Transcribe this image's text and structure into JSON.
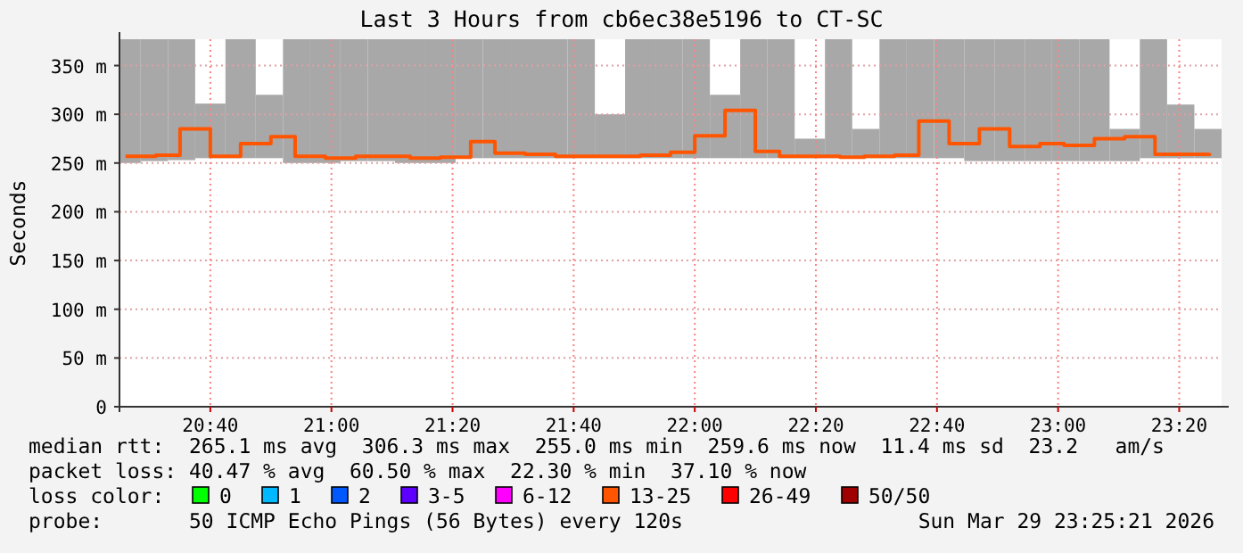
{
  "chart_data": {
    "type": "bar",
    "title": "Last 3 Hours from cb6ec38e5196 to CT-SC",
    "ylabel": "Seconds",
    "x": [
      "2026-03-29T20:26",
      "2026-03-29T20:31",
      "2026-03-29T20:35",
      "2026-03-29T20:40",
      "2026-03-29T20:45",
      "2026-03-29T20:50",
      "2026-03-29T20:54",
      "2026-03-29T20:59",
      "2026-03-29T21:04",
      "2026-03-29T21:08",
      "2026-03-29T21:13",
      "2026-03-29T21:18",
      "2026-03-29T21:23",
      "2026-03-29T21:27",
      "2026-03-29T21:32",
      "2026-03-29T21:37",
      "2026-03-29T21:41",
      "2026-03-29T21:46",
      "2026-03-29T21:51",
      "2026-03-29T21:56",
      "2026-03-29T22:00",
      "2026-03-29T22:05",
      "2026-03-29T22:10",
      "2026-03-29T22:14",
      "2026-03-29T22:19",
      "2026-03-29T22:24",
      "2026-03-29T22:28",
      "2026-03-29T22:33",
      "2026-03-29T22:37",
      "2026-03-29T22:42",
      "2026-03-29T22:47",
      "2026-03-29T22:52",
      "2026-03-29T22:57",
      "2026-03-29T23:01",
      "2026-03-29T23:06",
      "2026-03-29T23:11",
      "2026-03-29T23:16",
      "2026-03-29T23:20",
      "2026-03-29T23:25"
    ],
    "xlim": [
      "2026-03-29T20:25",
      "2026-03-29T23:27"
    ],
    "xticks": [
      {
        "value": "2026-03-29T20:40",
        "label": "20:40"
      },
      {
        "value": "2026-03-29T21:00",
        "label": "21:00"
      },
      {
        "value": "2026-03-29T21:20",
        "label": "21:20"
      },
      {
        "value": "2026-03-29T21:40",
        "label": "21:40"
      },
      {
        "value": "2026-03-29T22:00",
        "label": "22:00"
      },
      {
        "value": "2026-03-29T22:20",
        "label": "22:20"
      },
      {
        "value": "2026-03-29T22:40",
        "label": "22:40"
      },
      {
        "value": "2026-03-29T23:00",
        "label": "23:00"
      },
      {
        "value": "2026-03-29T23:20",
        "label": "23:20"
      }
    ],
    "ylim": [
      0,
      377
    ],
    "yticks": [
      0,
      {
        "value": 50,
        "label": "50 m"
      },
      {
        "value": 100,
        "label": "100 m"
      },
      {
        "value": 150,
        "label": "150 m"
      },
      {
        "value": 200,
        "label": "200 m"
      },
      {
        "value": 250,
        "label": "250 m"
      },
      {
        "value": 300,
        "label": "300 m"
      },
      {
        "value": 350,
        "label": "350 m"
      }
    ],
    "grid": true,
    "legend": "bottom",
    "legend_title": "loss color:",
    "series": [
      {
        "color": "#a8a8a8",
        "base": [
          250,
          252,
          253,
          255,
          255,
          255,
          250,
          250,
          252,
          252,
          250,
          250,
          255,
          255,
          255,
          255,
          255,
          255,
          255,
          255,
          255,
          255,
          255,
          255,
          255,
          255,
          255,
          255,
          255,
          255,
          252,
          252,
          252,
          252,
          252,
          252,
          255,
          255,
          255
        ],
        "values": [
          127,
          125,
          124,
          56,
          122,
          65,
          127,
          127,
          125,
          125,
          127,
          127,
          122,
          122,
          122,
          122,
          122,
          45,
          122,
          122,
          122,
          65,
          122,
          122,
          20,
          122,
          30,
          122,
          122,
          122,
          125,
          125,
          125,
          125,
          125,
          33,
          122,
          55,
          30
        ]
      },
      {
        "name": "0",
        "type": "step",
        "color": "#00ff00",
        "values": [
          null,
          null,
          null,
          null,
          null,
          null,
          null,
          null,
          null,
          null,
          null,
          null,
          null,
          null,
          null,
          null,
          null,
          null,
          null,
          null,
          null,
          null,
          null,
          null,
          null,
          null,
          null,
          null,
          null,
          null,
          null,
          null,
          null,
          null,
          null,
          null,
          null,
          null,
          null
        ]
      },
      {
        "name": "1",
        "type": "step",
        "color": "#00b8ff",
        "values": [
          null,
          null,
          null,
          null,
          null,
          null,
          null,
          null,
          null,
          null,
          null,
          null,
          null,
          null,
          null,
          null,
          null,
          null,
          null,
          null,
          null,
          null,
          null,
          null,
          null,
          null,
          null,
          null,
          null,
          null,
          null,
          null,
          null,
          null,
          null,
          null,
          null,
          null,
          null
        ]
      },
      {
        "name": "2",
        "type": "step",
        "color": "#0059ff",
        "values": [
          null,
          null,
          null,
          null,
          null,
          null,
          null,
          null,
          null,
          null,
          null,
          null,
          null,
          null,
          null,
          null,
          null,
          null,
          null,
          null,
          null,
          null,
          null,
          null,
          null,
          null,
          null,
          null,
          null,
          null,
          null,
          null,
          null,
          null,
          null,
          null,
          null,
          null,
          null
        ]
      },
      {
        "name": "3-5",
        "type": "step",
        "color": "#5e00ff",
        "values": [
          null,
          null,
          null,
          null,
          null,
          null,
          null,
          null,
          null,
          null,
          null,
          null,
          null,
          null,
          null,
          null,
          null,
          null,
          null,
          null,
          null,
          null,
          null,
          null,
          null,
          null,
          null,
          null,
          null,
          null,
          null,
          null,
          null,
          null,
          null,
          null,
          null,
          null,
          null
        ]
      },
      {
        "name": "6-12",
        "type": "step",
        "color": "#ff00ff",
        "values": [
          null,
          null,
          null,
          null,
          null,
          null,
          null,
          null,
          null,
          null,
          null,
          null,
          null,
          null,
          null,
          null,
          null,
          null,
          null,
          null,
          null,
          null,
          null,
          null,
          null,
          null,
          null,
          null,
          null,
          null,
          null,
          null,
          null,
          null,
          null,
          null,
          null,
          null,
          null
        ]
      },
      {
        "name": "13-25",
        "type": "step",
        "color": "#ff5500",
        "values": [
          257,
          258,
          285,
          257,
          270,
          277,
          257,
          255,
          257,
          257,
          255,
          256,
          272,
          260,
          259,
          257,
          257,
          257,
          258,
          261,
          278,
          304,
          262,
          257,
          257,
          256,
          257,
          258,
          293,
          270,
          285,
          267,
          270,
          268,
          275,
          277,
          259,
          259,
          260
        ]
      },
      {
        "name": "26-49",
        "type": "step",
        "color": "#ff0000",
        "values": [
          null,
          null,
          null,
          null,
          null,
          null,
          null,
          null,
          null,
          null,
          null,
          null,
          null,
          null,
          null,
          null,
          null,
          null,
          null,
          null,
          null,
          null,
          null,
          null,
          null,
          null,
          null,
          null,
          null,
          null,
          null,
          null,
          null,
          null,
          null,
          null,
          null,
          null,
          null
        ]
      },
      {
        "name": "50/50",
        "type": "step",
        "color": "#a10000",
        "values": [
          null,
          null,
          null,
          null,
          null,
          null,
          null,
          null,
          null,
          null,
          null,
          null,
          null,
          null,
          null,
          null,
          null,
          null,
          null,
          null,
          null,
          null,
          null,
          null,
          null,
          null,
          null,
          null,
          null,
          null,
          null,
          null,
          null,
          null,
          null,
          null,
          null,
          null,
          null
        ]
      }
    ],
    "annotations": [
      "median rtt:  265.1 ms avg  306.3 ms max  255.0 ms min  259.6 ms now  11.4 ms sd  23.2   am/s",
      "packet loss: 40.47 % avg  60.50 % max  22.30 % min  37.10 % now",
      "probe:       50 ICMP Echo Pings (56 Bytes) every 120s",
      "Sun Mar 29 23:25:21 2026"
    ]
  }
}
